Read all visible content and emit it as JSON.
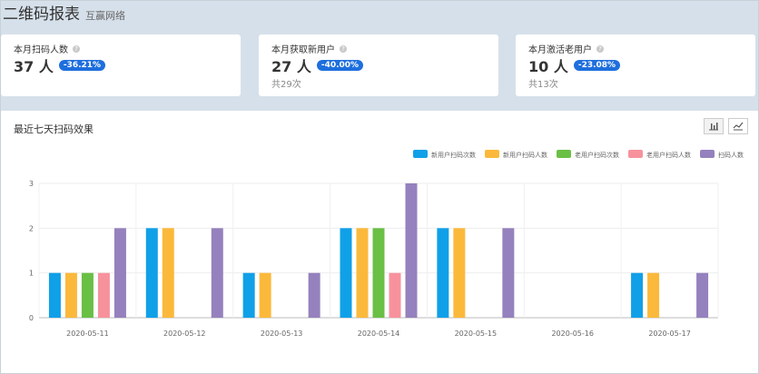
{
  "header": {
    "title": "二维码报表",
    "subtitle": "互赢网络"
  },
  "cards": [
    {
      "label": "本月扫码人数",
      "value": "37 人",
      "badge": "-36.21%",
      "sub": ""
    },
    {
      "label": "本月获取新用户",
      "value": "27 人",
      "badge": "-40.00%",
      "sub": "共29次"
    },
    {
      "label": "本月激活老用户",
      "value": "10 人",
      "badge": "-23.08%",
      "sub": "共13次"
    }
  ],
  "help_glyph": "?",
  "panel": {
    "title": "最近七天扫码效果"
  },
  "icons": {
    "bar_toggle": "bar-chart-icon",
    "line_toggle": "line-chart-icon"
  },
  "chart_data": {
    "type": "bar",
    "categories": [
      "2020-05-11",
      "2020-05-12",
      "2020-05-13",
      "2020-05-14",
      "2020-05-15",
      "2020-05-16",
      "2020-05-17"
    ],
    "series": [
      {
        "name": "新用户扫码次数",
        "color": "#10a0e8",
        "values": [
          1,
          2,
          1,
          2,
          2,
          0,
          1
        ]
      },
      {
        "name": "新用户扫码人数",
        "color": "#fbb93b",
        "values": [
          1,
          2,
          1,
          2,
          2,
          0,
          1
        ]
      },
      {
        "name": "老用户扫码次数",
        "color": "#6abf45",
        "values": [
          1,
          0,
          0,
          2,
          0,
          0,
          0
        ]
      },
      {
        "name": "老用户扫码人数",
        "color": "#f7929d",
        "values": [
          1,
          0,
          0,
          1,
          0,
          0,
          0
        ]
      },
      {
        "name": "扫码人数",
        "color": "#9581bd",
        "values": [
          2,
          2,
          1,
          3,
          2,
          0,
          1
        ]
      }
    ],
    "y_ticks": [
      "0",
      "1",
      "2",
      "3"
    ],
    "ylim": [
      0,
      3
    ],
    "grid": true,
    "legend": "top-right",
    "title": "",
    "xlabel": "",
    "ylabel": ""
  }
}
